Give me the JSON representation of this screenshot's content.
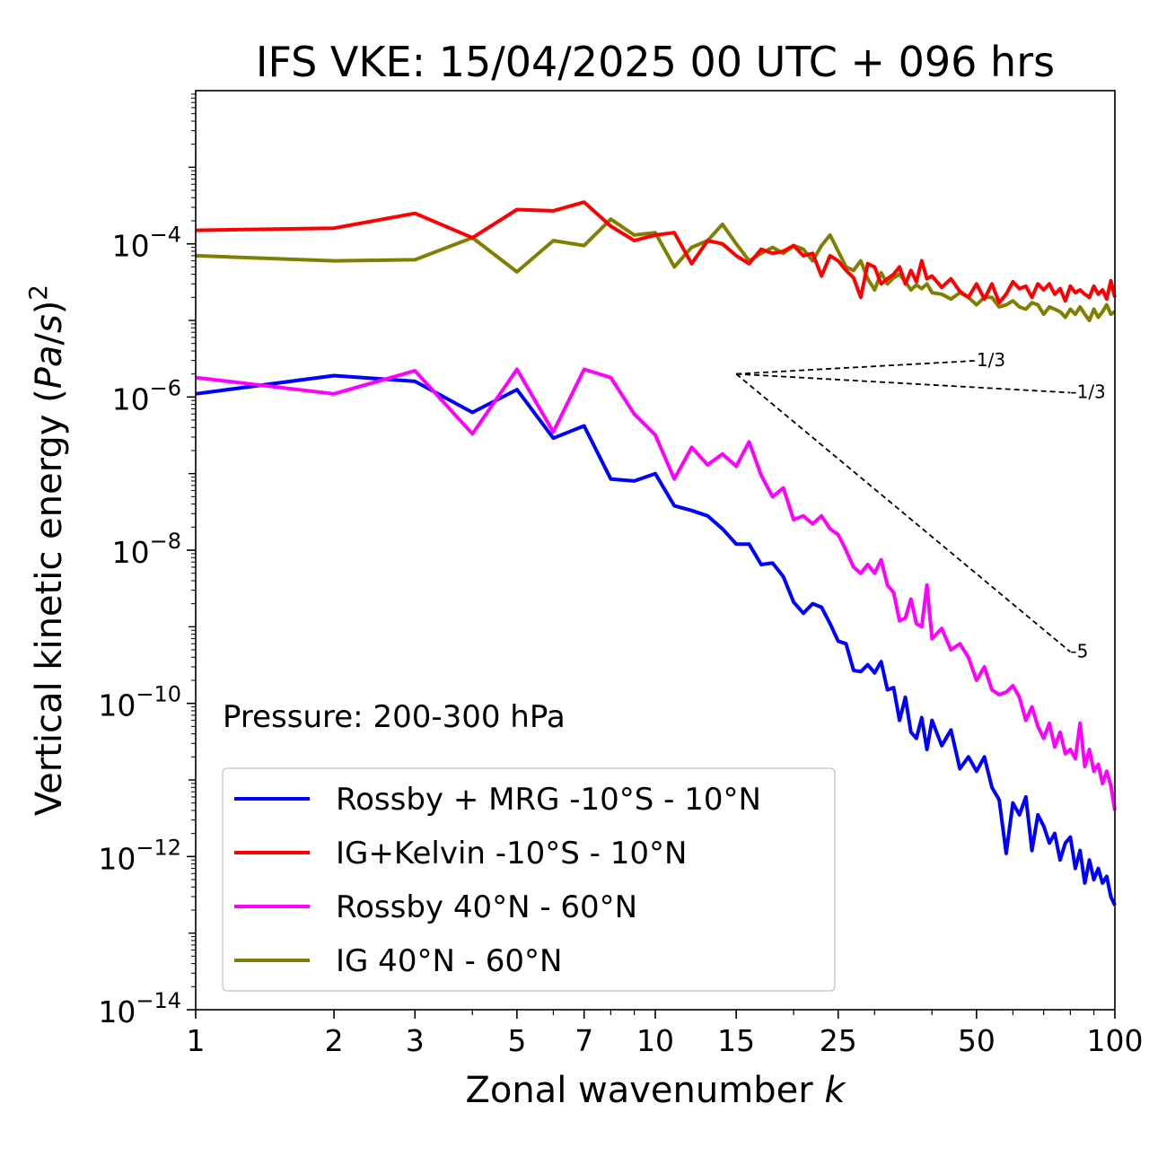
{
  "chart_data": {
    "type": "line",
    "title": "IFS VKE: 15/04/2025 00 UTC + 096 hrs",
    "xlabel": "Zonal wavenumber k",
    "ylabel": "Vertical kinetic energy (Pa/s)^2",
    "xscale": "log",
    "yscale": "log",
    "xlim": [
      1,
      100
    ],
    "ylim": [
      1e-14,
      0.01
    ],
    "x_ticks": [
      1,
      2,
      3,
      5,
      7,
      10,
      15,
      25,
      50,
      100
    ],
    "x_tick_labels": [
      "1",
      "2",
      "3",
      "5",
      "7",
      "10",
      "15",
      "25",
      "50",
      "100"
    ],
    "y_ticks": [
      -14,
      -12,
      -10,
      -8,
      -6,
      -4
    ],
    "y_tick_labels": [
      "10",
      "10",
      "10",
      "10",
      "10",
      "10"
    ],
    "y_tick_exponents": [
      "−14",
      "−12",
      "−10",
      "−8",
      "−6",
      "−4"
    ],
    "annotation": "Pressure: 200-300 hPa",
    "legend_position": "lower-left",
    "series": [
      {
        "name": "Rossby + MRG -10°S - 10°N",
        "color": "#0000ff",
        "x": [
          1,
          2,
          3,
          4,
          5,
          6,
          7,
          8,
          9,
          10,
          11,
          12,
          13,
          14,
          15,
          16,
          17,
          18,
          19,
          20,
          21,
          22,
          23,
          24,
          25,
          26,
          27,
          28,
          29,
          30,
          31,
          32,
          33,
          34,
          35,
          36,
          37,
          38,
          39,
          40,
          42,
          44,
          46,
          48,
          50,
          52,
          54,
          56,
          58,
          60,
          62,
          64,
          66,
          68,
          70,
          72,
          74,
          76,
          78,
          80,
          82,
          84,
          86,
          88,
          90,
          92,
          94,
          96,
          98,
          100
        ],
        "values": [
          1.1e-06,
          1.9e-06,
          1.6e-06,
          6.3e-07,
          1.25e-06,
          2.9e-07,
          4.2e-07,
          8.5e-08,
          8e-08,
          1e-07,
          3.8e-08,
          3.3e-08,
          2.8e-08,
          1.9e-08,
          1.2e-08,
          1.2e-08,
          6.5e-09,
          6.8e-09,
          4.5e-09,
          2.1e-09,
          1.5e-09,
          2e-09,
          1.8e-09,
          1.1e-09,
          6.5e-10,
          6e-10,
          2.7e-10,
          2.6e-10,
          3.2e-10,
          2.5e-10,
          3.5e-10,
          1.5e-10,
          1.6e-10,
          6e-11,
          1.2e-10,
          4.2e-11,
          3.5e-11,
          6.5e-11,
          2.5e-11,
          6e-11,
          2.8e-11,
          4.5e-11,
          1.4e-11,
          2e-11,
          1.3e-11,
          2e-11,
          8e-12,
          5.5e-12,
          1.1e-12,
          5e-12,
          3.5e-12,
          6e-12,
          1.2e-12,
          3.5e-12,
          2.5e-12,
          1.5e-12,
          2e-12,
          9e-13,
          1.5e-12,
          1.8e-12,
          7e-13,
          1.2e-12,
          4.5e-13,
          9e-13,
          5e-13,
          7e-13,
          4.5e-13,
          5.5e-13,
          3e-13,
          2.3e-13
        ]
      },
      {
        "name": "IG+Kelvin -10°S - 10°N",
        "color": "#ff0000",
        "x": [
          1,
          2,
          3,
          4,
          5,
          6,
          7,
          8,
          9,
          10,
          11,
          12,
          13,
          14,
          15,
          16,
          17,
          18,
          19,
          20,
          21,
          22,
          23,
          24,
          25,
          26,
          27,
          28,
          29,
          30,
          31,
          32,
          33,
          34,
          35,
          36,
          37,
          38,
          39,
          40,
          42,
          44,
          46,
          48,
          50,
          52,
          54,
          56,
          58,
          60,
          62,
          64,
          66,
          68,
          70,
          72,
          74,
          76,
          78,
          80,
          82,
          84,
          86,
          88,
          90,
          92,
          94,
          96,
          98,
          100
        ],
        "values": [
          0.00015,
          0.00016,
          0.00025,
          0.00012,
          0.00028,
          0.00027,
          0.00035,
          0.00017,
          0.00011,
          0.00013,
          0.00014,
          5.5e-05,
          0.00011,
          0.0001,
          7e-05,
          5.5e-05,
          8.5e-05,
          7.5e-05,
          8e-05,
          9.5e-05,
          7e-05,
          7.5e-05,
          3.8e-05,
          7e-05,
          6e-05,
          4.5e-05,
          3.6e-05,
          2e-05,
          5.5e-05,
          5e-05,
          3e-05,
          3.5e-05,
          4e-05,
          5e-05,
          3e-05,
          4.5e-05,
          3.2e-05,
          6e-05,
          3.5e-05,
          3.8e-05,
          2.7e-05,
          3.5e-05,
          2.4e-05,
          2e-05,
          3e-05,
          1.9e-05,
          3e-05,
          1.7e-05,
          2.2e-05,
          3.2e-05,
          2.6e-05,
          2.8e-05,
          2e-05,
          3e-05,
          2.5e-05,
          3e-05,
          2.2e-05,
          2.6e-05,
          1.8e-05,
          2.8e-05,
          2.3e-05,
          2.5e-05,
          2.2e-05,
          2e-05,
          2.8e-05,
          2.2e-05,
          2.5e-05,
          1.9e-05,
          3.3e-05,
          2e-05
        ]
      },
      {
        "name": "Rossby 40°N - 60°N",
        "color": "#ff00ff",
        "x": [
          1,
          2,
          3,
          4,
          5,
          6,
          7,
          8,
          9,
          10,
          11,
          12,
          13,
          14,
          15,
          16,
          17,
          18,
          19,
          20,
          21,
          22,
          23,
          24,
          25,
          26,
          27,
          28,
          29,
          30,
          31,
          32,
          33,
          34,
          35,
          36,
          37,
          38,
          39,
          40,
          42,
          44,
          46,
          48,
          50,
          52,
          54,
          56,
          58,
          60,
          62,
          64,
          66,
          68,
          70,
          72,
          74,
          76,
          78,
          80,
          82,
          84,
          86,
          88,
          90,
          92,
          94,
          96,
          98,
          100
        ],
        "values": [
          1.8e-06,
          1.1e-06,
          2.2e-06,
          3.3e-07,
          2.3e-06,
          3.5e-07,
          2.3e-06,
          1.8e-06,
          6e-07,
          3.2e-07,
          8.5e-08,
          2.2e-07,
          1.3e-07,
          1.8e-07,
          1.25e-07,
          2.6e-07,
          9.5e-08,
          5e-08,
          6.5e-08,
          2.5e-08,
          2.8e-08,
          2.2e-08,
          2.8e-08,
          1.9e-08,
          1.6e-08,
          1e-08,
          6e-09,
          5e-09,
          6.5e-09,
          5e-09,
          7.5e-09,
          3.5e-09,
          2.8e-09,
          1.2e-09,
          1.3e-09,
          2.3e-09,
          1.1e-09,
          1e-09,
          3.5e-09,
          7e-10,
          9.5e-10,
          5e-10,
          6e-10,
          4e-10,
          2e-10,
          3e-10,
          1.5e-10,
          1.3e-10,
          1.4e-10,
          1.7e-10,
          1.2e-10,
          6e-11,
          9e-11,
          5e-11,
          3.5e-11,
          5.5e-11,
          2.7e-11,
          4.2e-11,
          2.2e-11,
          2.5e-11,
          1.9e-11,
          5.5e-11,
          1.5e-11,
          2.5e-11,
          1.3e-11,
          1.6e-11,
          9e-12,
          1.3e-11,
          8.5e-12,
          4e-12
        ]
      },
      {
        "name": "IG 40°N - 60°N",
        "color": "#808000",
        "x": [
          1,
          2,
          3,
          4,
          5,
          6,
          7,
          8,
          9,
          10,
          11,
          12,
          13,
          14,
          15,
          16,
          17,
          18,
          19,
          20,
          21,
          22,
          23,
          24,
          25,
          26,
          27,
          28,
          29,
          30,
          31,
          32,
          33,
          34,
          35,
          36,
          37,
          38,
          39,
          40,
          42,
          44,
          46,
          48,
          50,
          52,
          54,
          56,
          58,
          60,
          62,
          64,
          66,
          68,
          70,
          72,
          74,
          76,
          78,
          80,
          82,
          84,
          86,
          88,
          90,
          92,
          94,
          96,
          98,
          100
        ],
        "values": [
          7e-05,
          6e-05,
          6.2e-05,
          0.00012,
          4.3e-05,
          0.00011,
          9.5e-05,
          0.00021,
          0.00013,
          0.00014,
          5e-05,
          9e-05,
          0.00011,
          0.00018,
          0.0001,
          6e-05,
          7.5e-05,
          9e-05,
          7.5e-05,
          9.5e-05,
          8.5e-05,
          6e-05,
          9.5e-05,
          0.00013,
          8e-05,
          5e-05,
          4.5e-05,
          6e-05,
          3.5e-05,
          2.5e-05,
          4.2e-05,
          3e-05,
          3.6e-05,
          4e-05,
          3.2e-05,
          2.5e-05,
          2.9e-05,
          2.6e-05,
          3e-05,
          2.3e-05,
          2.2e-05,
          1.9e-05,
          2.3e-05,
          2e-05,
          1.6e-05,
          2e-05,
          2e-05,
          1.5e-05,
          1.6e-05,
          1.8e-05,
          1.5e-05,
          1.4e-05,
          1.7e-05,
          1.6e-05,
          1.2e-05,
          1.5e-05,
          1.4e-05,
          1.3e-05,
          1.1e-05,
          1.4e-05,
          1.2e-05,
          1.5e-05,
          1.2e-05,
          1e-05,
          1.4e-05,
          1.1e-05,
          1.3e-05,
          1.6e-05,
          1.2e-05,
          1.3e-05
        ]
      }
    ],
    "reference_slopes": [
      {
        "label": "1/3",
        "x_start": 15,
        "x_end": 50,
        "y_start": 2e-06,
        "y_end": 2.98e-06
      },
      {
        "label": "-1/3",
        "x_start": 15,
        "x_end": 80,
        "y_start": 2e-06,
        "y_end": 1.14e-06
      },
      {
        "label": "-5",
        "x_start": 15,
        "x_end": 80,
        "y_start": 2e-06,
        "y_end": 4.7e-10
      }
    ]
  }
}
